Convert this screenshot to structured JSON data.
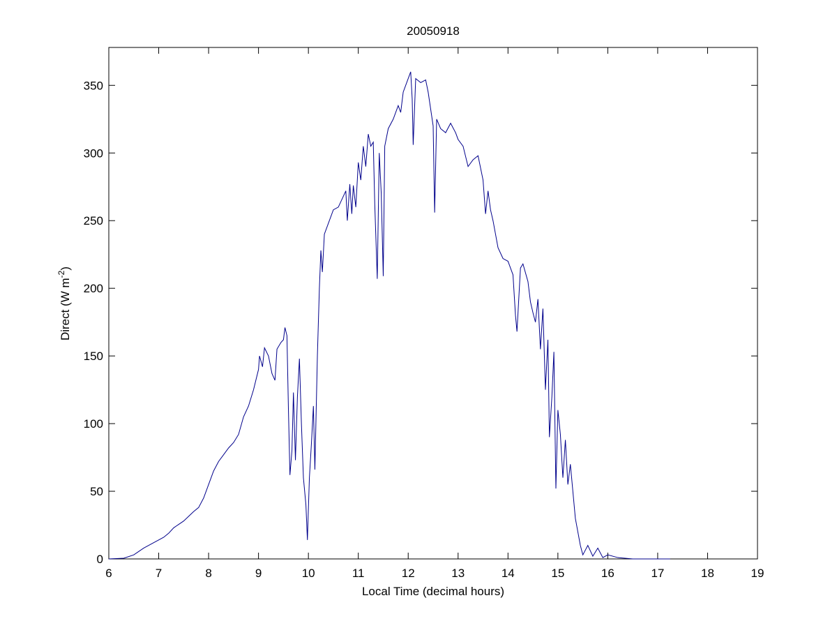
{
  "chart_data": {
    "type": "line",
    "title": "20050918",
    "xlabel": "Local Time (decimal hours)",
    "ylabel": {
      "text": "Direct (W m",
      "superscript": "-2",
      "suffix": ")"
    },
    "color": "#00008b",
    "x": [
      6.0,
      6.3,
      6.5,
      6.7,
      6.9,
      7.0,
      7.1,
      7.2,
      7.3,
      7.5,
      7.7,
      7.8,
      7.9,
      8.0,
      8.1,
      8.2,
      8.3,
      8.4,
      8.5,
      8.6,
      8.7,
      8.8,
      8.9,
      9.0,
      9.02,
      9.08,
      9.12,
      9.2,
      9.27,
      9.33,
      9.37,
      9.45,
      9.5,
      9.53,
      9.57,
      9.6,
      9.63,
      9.67,
      9.7,
      9.74,
      9.78,
      9.82,
      9.86,
      9.9,
      9.95,
      9.98,
      10.02,
      10.06,
      10.1,
      10.13,
      10.18,
      10.22,
      10.25,
      10.28,
      10.32,
      10.4,
      10.5,
      10.6,
      10.7,
      10.75,
      10.78,
      10.83,
      10.87,
      10.9,
      10.95,
      11.0,
      11.05,
      11.1,
      11.15,
      11.2,
      11.25,
      11.3,
      11.33,
      11.38,
      11.42,
      11.46,
      11.5,
      11.53,
      11.6,
      11.7,
      11.8,
      11.85,
      11.9,
      12.0,
      12.05,
      12.08,
      12.1,
      12.15,
      12.25,
      12.35,
      12.4,
      12.5,
      12.53,
      12.57,
      12.65,
      12.75,
      12.85,
      12.95,
      13.0,
      13.1,
      13.2,
      13.3,
      13.4,
      13.5,
      13.55,
      13.6,
      13.65,
      13.7,
      13.8,
      13.9,
      14.0,
      14.1,
      14.15,
      14.18,
      14.25,
      14.3,
      14.4,
      14.45,
      14.5,
      14.55,
      14.6,
      14.65,
      14.7,
      14.75,
      14.8,
      14.83,
      14.88,
      14.92,
      14.96,
      15.0,
      15.05,
      15.1,
      15.15,
      15.2,
      15.25,
      15.3,
      15.35,
      15.45,
      15.5,
      15.6,
      15.7,
      15.8,
      15.9,
      16.0,
      16.2,
      16.5,
      17.0,
      17.25
    ],
    "values": [
      0,
      0.5,
      3,
      8,
      12,
      14,
      16,
      19,
      23,
      28,
      35,
      38,
      45,
      55,
      65,
      72,
      77,
      82,
      86,
      92,
      105,
      113,
      125,
      140,
      150,
      142,
      156,
      150,
      137,
      132,
      155,
      160,
      162,
      171,
      165,
      110,
      62,
      80,
      123,
      73,
      120,
      148,
      100,
      60,
      40,
      14,
      60,
      85,
      113,
      66,
      150,
      200,
      228,
      212,
      240,
      248,
      258,
      260,
      268,
      272,
      250,
      277,
      255,
      276,
      260,
      293,
      280,
      305,
      290,
      314,
      305,
      308,
      262,
      207,
      300,
      270,
      209,
      305,
      318,
      325,
      335,
      330,
      345,
      355,
      360,
      340,
      306,
      355,
      352,
      354,
      345,
      320,
      256,
      325,
      318,
      315,
      322,
      315,
      310,
      305,
      290,
      295,
      298,
      280,
      255,
      272,
      258,
      250,
      230,
      222,
      220,
      210,
      180,
      168,
      215,
      218,
      205,
      190,
      182,
      175,
      192,
      155,
      185,
      125,
      162,
      90,
      120,
      153,
      52,
      110,
      92,
      60,
      88,
      55,
      70,
      50,
      30,
      10,
      3,
      10,
      2,
      8,
      1,
      3,
      1,
      0,
      0,
      0
    ],
    "xlim": [
      6,
      19
    ],
    "xticks": [
      6,
      7,
      8,
      9,
      10,
      11,
      12,
      13,
      14,
      15,
      16,
      17,
      18,
      19
    ],
    "ylim": [
      0,
      378
    ],
    "yticks": [
      0,
      50,
      100,
      150,
      200,
      250,
      300,
      350
    ]
  }
}
